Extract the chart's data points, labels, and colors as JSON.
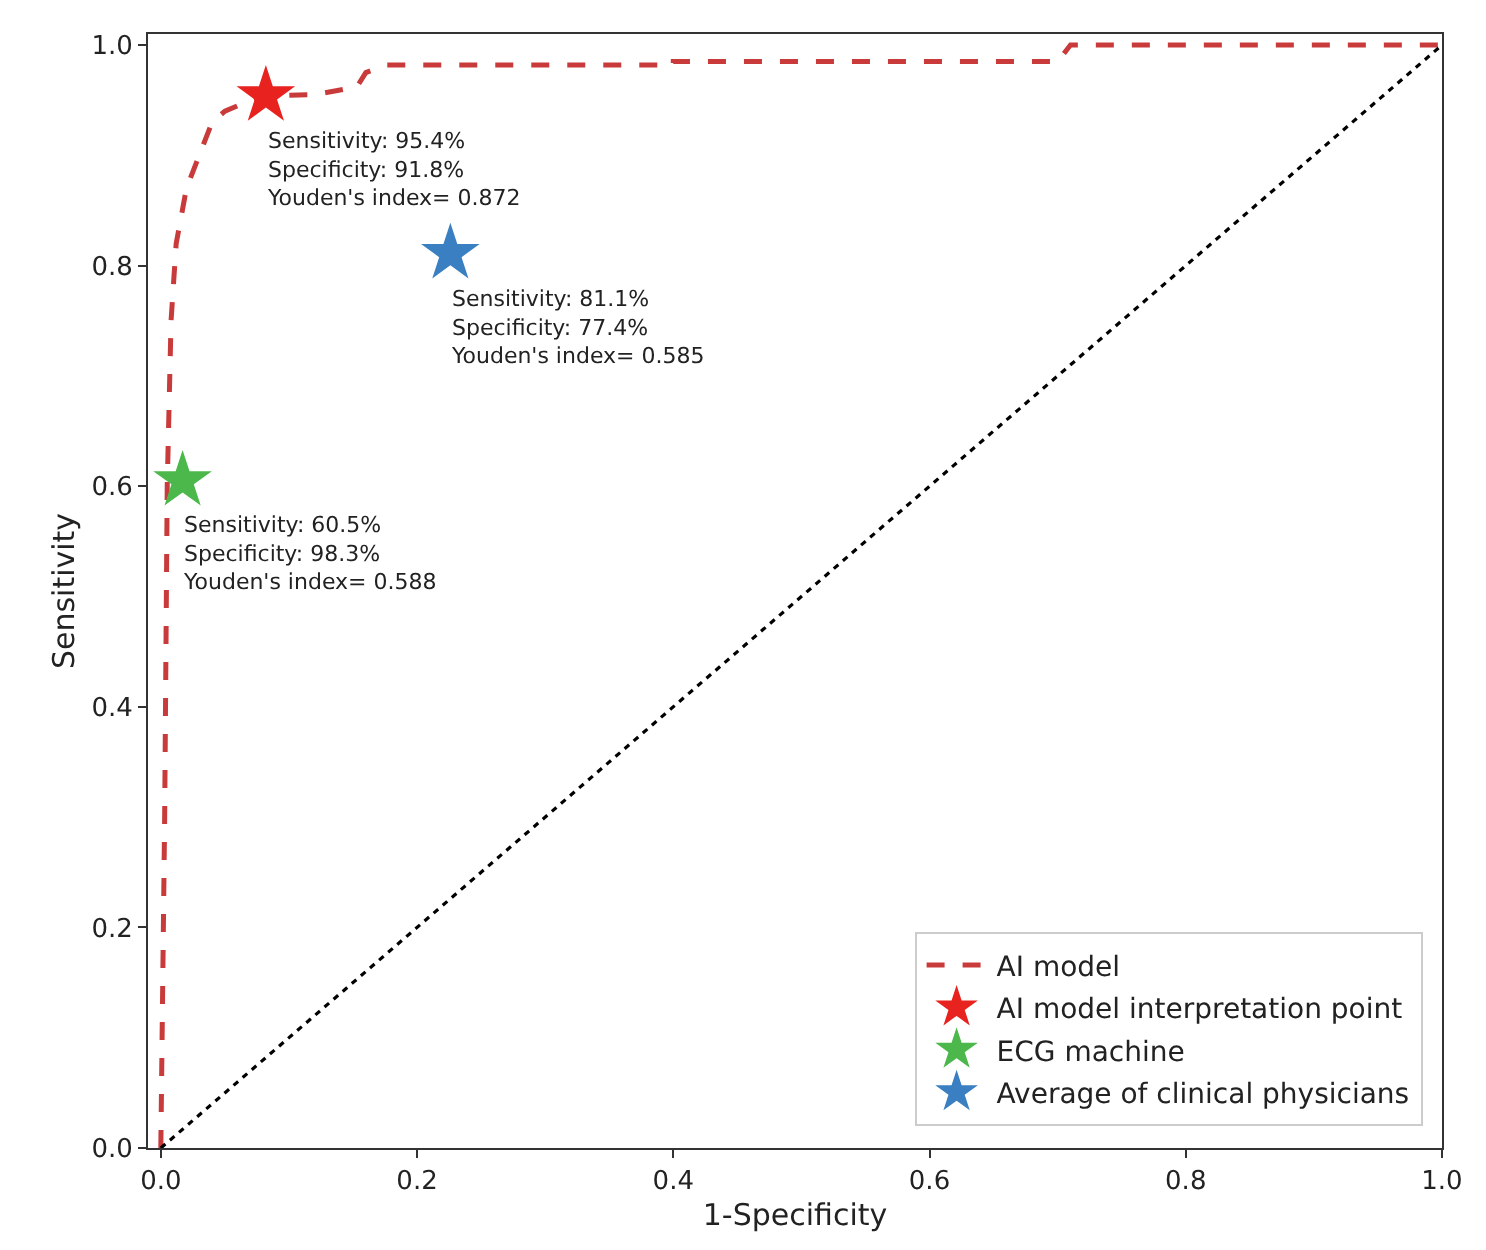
{
  "chart_data": {
    "type": "line",
    "xlabel": "1-Specificity",
    "ylabel": "Sensitivity",
    "xlim": [
      -0.01,
      1.0
    ],
    "ylim": [
      0.0,
      1.01
    ],
    "xticks": [
      {
        "value": 0.0,
        "label": "0.0"
      },
      0.2,
      0.4,
      0.6,
      0.8,
      {
        "value": 1.0,
        "label": "1.0"
      }
    ],
    "yticks": [
      {
        "value": 0.0,
        "label": "0.0"
      },
      0.2,
      0.4,
      0.6,
      0.8,
      {
        "value": 1.0,
        "label": "1.0"
      }
    ],
    "legend": "bottom right",
    "series": [
      {
        "name": "AI model",
        "color": "#c93a3a",
        "line_style": "dashed",
        "marker": "none",
        "x": [
          0.0,
          0.003,
          0.005,
          0.008,
          0.012,
          0.02,
          0.03,
          0.04,
          0.05,
          0.07,
          0.082,
          0.12,
          0.153,
          0.16,
          0.176,
          0.4,
          0.4,
          0.7,
          0.71,
          1.0
        ],
        "values": [
          0.0,
          0.3,
          0.6,
          0.75,
          0.82,
          0.87,
          0.9,
          0.93,
          0.94,
          0.95,
          0.954,
          0.955,
          0.962,
          0.975,
          0.982,
          0.982,
          0.985,
          0.985,
          1.0,
          1.0
        ]
      },
      {
        "name": "AI model interpretation point",
        "type": "scatter",
        "color": "#e8231f",
        "marker": "star",
        "x": [
          0.082
        ],
        "values": [
          0.954
        ]
      },
      {
        "name": "ECG machine",
        "type": "scatter",
        "color": "#4cb84c",
        "marker": "star",
        "x": [
          0.017
        ],
        "values": [
          0.605
        ]
      },
      {
        "name": "Average of clinical physicians",
        "type": "scatter",
        "color": "#3a7fc1",
        "marker": "star",
        "x": [
          0.226
        ],
        "values": [
          0.811
        ]
      },
      {
        "color": "#000000",
        "line_style": "dotted",
        "marker": "none",
        "x": [
          0.0,
          1.0
        ],
        "values": [
          0.0,
          1.0
        ]
      }
    ],
    "annotations": [
      {
        "text": "Sensitivity: 95.4%\nSpecificity: 91.8%\nYouden's index= 0.872",
        "x": 0.082,
        "y": 0.954
      },
      {
        "text": "Sensitivity: 81.1%\nSpecificity: 77.4%\nYouden's index= 0.585",
        "x": 0.226,
        "y": 0.811
      },
      {
        "text": "Sensitivity: 60.5%\nSpecificity: 98.3%\nYouden's index= 0.588",
        "x": 0.017,
        "y": 0.605
      }
    ]
  }
}
